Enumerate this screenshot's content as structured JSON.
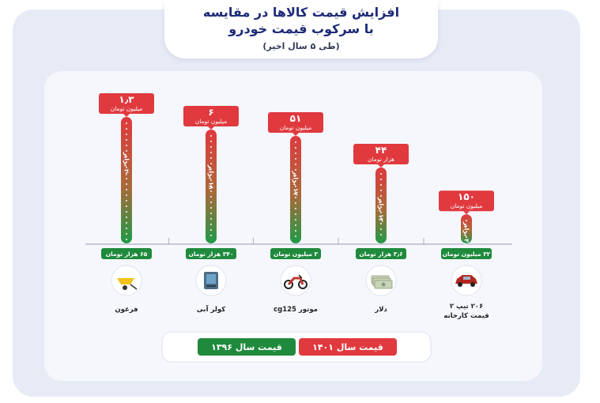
{
  "title_line1": "افزایش قیمت کالاها در مقایسه",
  "title_line2": "با سرکوب قیمت خودرو",
  "subtitle": "(طی ۵ سال اخیر)",
  "legend": {
    "old_label": "قیمت سال",
    "old_year": "۱۳۹۶",
    "new_label": "قیمت سال",
    "new_year": "۱۴۰۱",
    "old_color": "#1f8a3c",
    "new_color": "#e0393e"
  },
  "chart_data": {
    "type": "bar",
    "categories": [
      "فرغون",
      "کولر آبی",
      "موتور cg125",
      "دلار",
      "۲۰۶ تیپ ۲ قیمت کارخانه"
    ],
    "new_values": [
      "۱٫۳",
      "۶",
      "۵۱",
      "۴۴",
      "۱۵۰"
    ],
    "new_units": [
      "میلیون تومان",
      "میلیون تومان",
      "میلیون تومان",
      "هزار تومان",
      "میلیون تومان"
    ],
    "old_values": [
      "۶۵",
      "۳۴۰",
      "۳",
      "۳٫۶",
      "۳۲"
    ],
    "old_units": [
      "هزار تومان",
      "هزار تومان",
      "میلیون تومان",
      "هزار تومان",
      "میلیون تومان"
    ],
    "multipliers": [
      20,
      18,
      17,
      12,
      4.6
    ],
    "multiplier_labels": [
      "۲۰ برابر",
      "۱۸ برابر",
      "۱۷ برابر",
      "۱۲ برابر",
      "۴٫۶ برابر"
    ],
    "icons": [
      "wheelbarrow-icon",
      "water-cooler-icon",
      "motorcycle-icon",
      "dollar-bills-icon",
      "car-icon"
    ],
    "scale_max": 20
  }
}
